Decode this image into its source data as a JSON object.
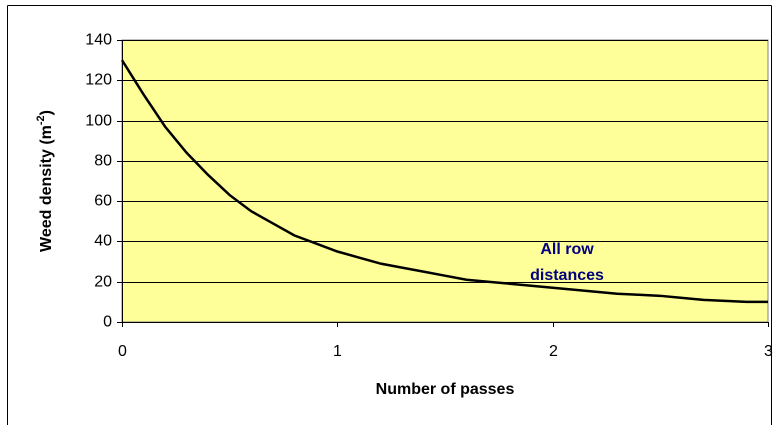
{
  "chart_data": {
    "type": "line",
    "xlabel": "Number of passes",
    "ylabel": {
      "text": "Weed density (m",
      "sup": "-2",
      "close": ")"
    },
    "annotation": [
      "All row",
      "distances"
    ],
    "annotation_color": "#000080",
    "plot_background": "#ffff99",
    "grid": true,
    "x": [
      0,
      0.1,
      0.2,
      0.3,
      0.4,
      0.5,
      0.6,
      0.7,
      0.8,
      0.9,
      1.0,
      1.1,
      1.2,
      1.3,
      1.4,
      1.5,
      1.6,
      1.7,
      1.8,
      1.9,
      2.0,
      2.1,
      2.2,
      2.3,
      2.4,
      2.5,
      2.6,
      2.7,
      2.8,
      2.9,
      3.0
    ],
    "series": [
      {
        "color": "#000000",
        "values": [
          130,
          113,
          97,
          84,
          73,
          63,
          55,
          49,
          43,
          39,
          35,
          32,
          29,
          27,
          25,
          23,
          21,
          20,
          19,
          18,
          17,
          16,
          15,
          14,
          13.5,
          13,
          12,
          11,
          10.5,
          10,
          10
        ]
      }
    ],
    "xlim": [
      0,
      3
    ],
    "xticks": [
      0,
      1,
      2,
      3
    ],
    "ylim": [
      0,
      140
    ],
    "yticks": [
      0,
      20,
      40,
      60,
      80,
      100,
      120,
      140
    ]
  }
}
